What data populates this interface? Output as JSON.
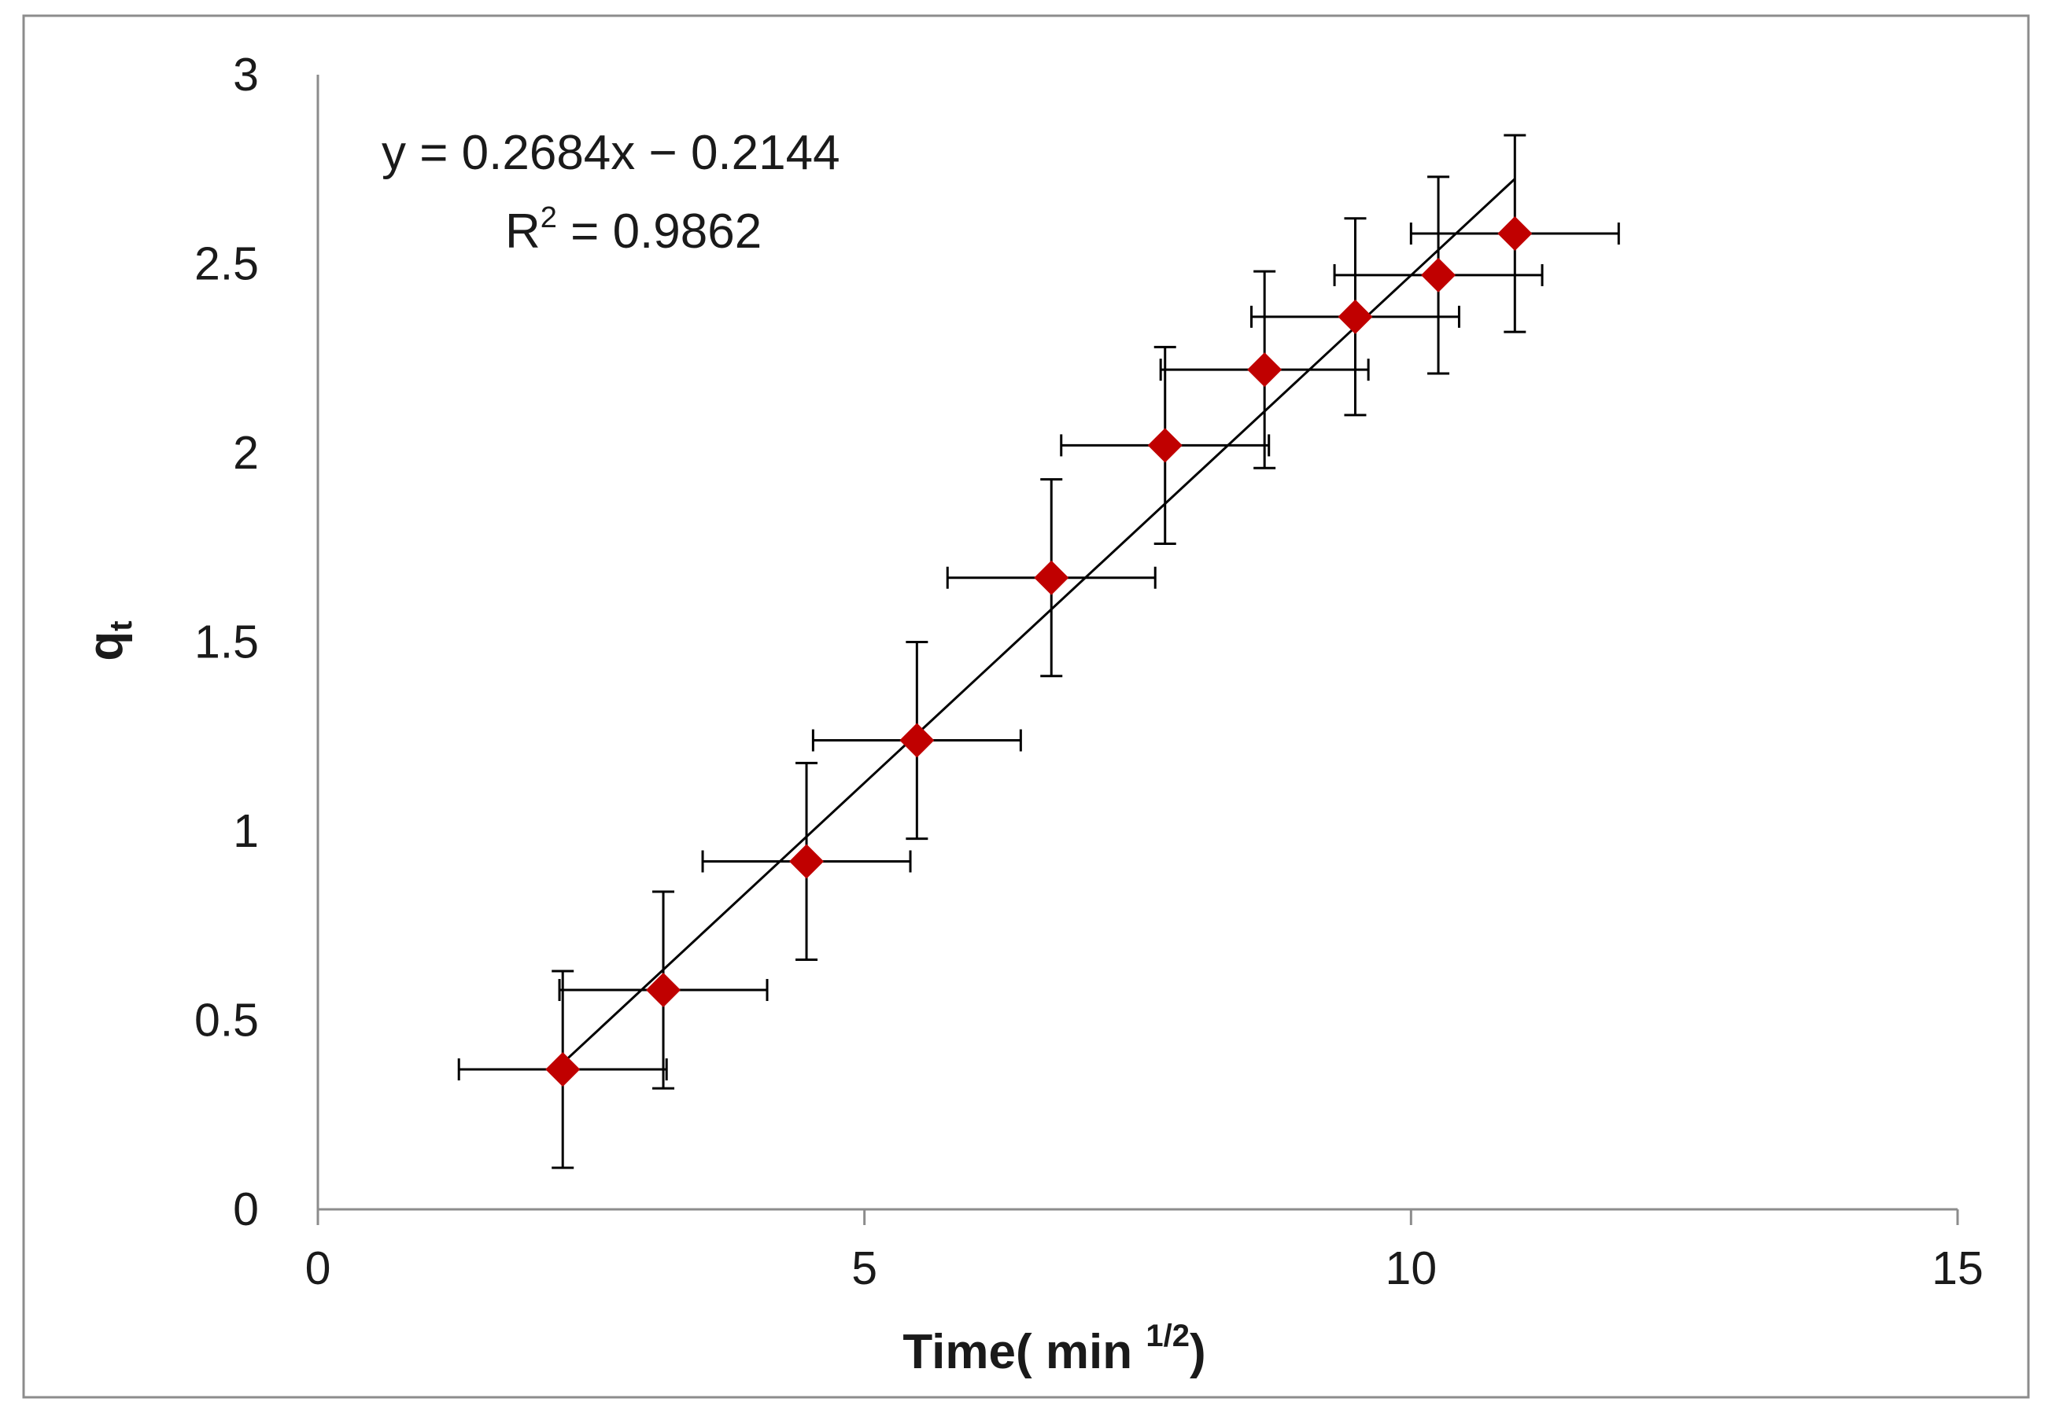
{
  "chart_data": {
    "type": "scatter",
    "title": "",
    "xlabel": "Time( min ",
    "xlabel_sup": "1/2",
    "xlabel_close": ")",
    "ylabel": "q",
    "ylabel_sub": "t",
    "xlim": [
      0,
      15
    ],
    "ylim": [
      0,
      3
    ],
    "x_ticks": [
      0,
      5,
      10,
      15
    ],
    "y_ticks": [
      0,
      0.5,
      1,
      1.5,
      2,
      2.5,
      3
    ],
    "x_tick_labels": [
      "0",
      "5",
      "10",
      "15"
    ],
    "y_tick_labels": [
      "0",
      "0.5",
      "1",
      "1.5",
      "2",
      "2.5",
      "3"
    ],
    "grid": false,
    "legend": "none",
    "series": [
      {
        "name": "qt",
        "marker": "diamond",
        "color": "#c00000",
        "x": [
          2.24,
          3.16,
          4.47,
          5.48,
          6.71,
          7.75,
          8.66,
          9.49,
          10.25,
          10.95
        ],
        "y": [
          0.37,
          0.58,
          0.92,
          1.24,
          1.67,
          2.02,
          2.22,
          2.36,
          2.47,
          2.58
        ],
        "x_err": [
          0.95,
          0.95,
          0.95,
          0.95,
          0.95,
          0.95,
          0.95,
          0.95,
          0.95,
          0.95
        ],
        "y_err": [
          0.26,
          0.26,
          0.26,
          0.26,
          0.26,
          0.26,
          0.26,
          0.26,
          0.26,
          0.26
        ]
      }
    ],
    "trendline": {
      "type": "linear",
      "slope": 0.2684,
      "intercept": -0.2144,
      "x_range": [
        2.24,
        10.95
      ],
      "color": "#000000"
    },
    "annotations": {
      "equation": "y = 0.2684x − 0.2144",
      "r2_prefix": "R",
      "r2_sup": "2",
      "r2_value": " = 0.9862"
    }
  }
}
